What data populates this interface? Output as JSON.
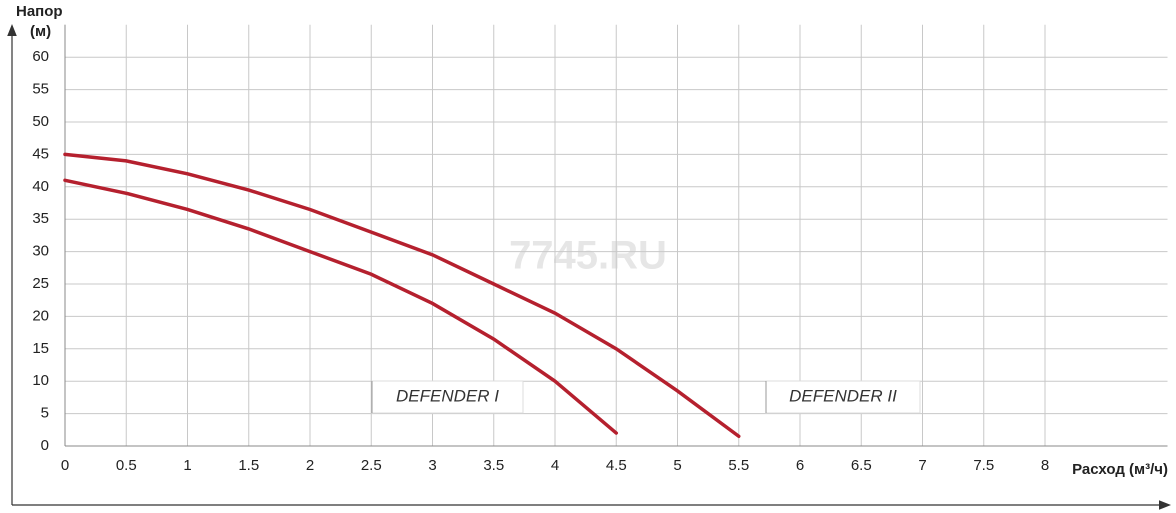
{
  "chart_data": {
    "type": "line",
    "y_label": "Напор",
    "y_label_unit": "(м)",
    "x_label": "Расход (м³/ч)",
    "watermark": "7745.RU",
    "xlim": [
      0,
      9
    ],
    "xticks": [
      0,
      0.5,
      1,
      1.5,
      2,
      2.5,
      3,
      3.5,
      4,
      4.5,
      5,
      5.5,
      6,
      6.5,
      7,
      7.5,
      8
    ],
    "ylim": [
      0,
      65
    ],
    "yticks": [
      0,
      5,
      10,
      15,
      20,
      25,
      30,
      35,
      40,
      45,
      50,
      55,
      60
    ],
    "grid": true,
    "series": [
      {
        "name": "DEFENDER I",
        "color": "#b5202e",
        "x": [
          0,
          0.5,
          1,
          1.5,
          2,
          2.5,
          3,
          3.5,
          4,
          4.5
        ],
        "values": [
          41,
          39,
          36.5,
          33.5,
          30,
          26.5,
          22,
          16.5,
          10,
          2
        ]
      },
      {
        "name": "DEFENDER II",
        "color": "#b5202e",
        "x": [
          0,
          0.5,
          1,
          1.5,
          2,
          2.5,
          3,
          3.5,
          4,
          4.5,
          5,
          5.5
        ],
        "values": [
          45,
          44,
          42,
          39.5,
          36.5,
          33,
          29.5,
          25,
          20.5,
          15,
          8.5,
          1.5
        ]
      }
    ]
  }
}
